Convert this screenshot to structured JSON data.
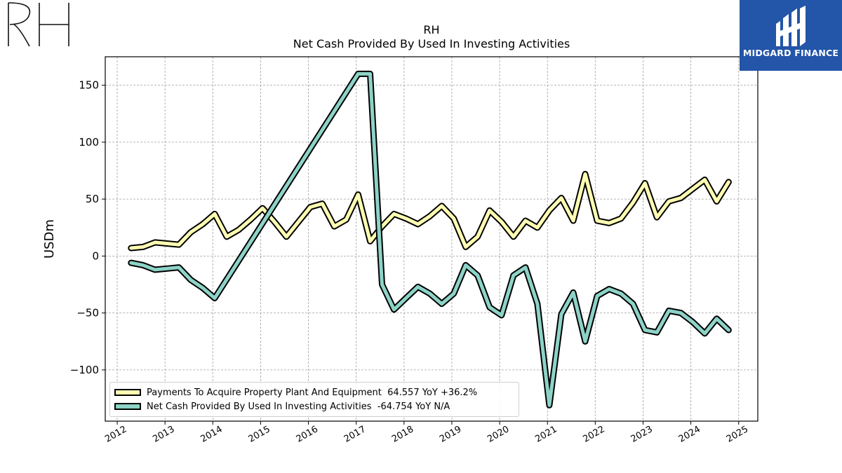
{
  "brand": {
    "monogram": "RH"
  },
  "partner": {
    "name": "MIDGARD FINANCE",
    "bg_color": "#2355a8"
  },
  "chart_data": {
    "type": "line",
    "title": "RH",
    "subtitle": "Net Cash Provided By Used In Investing Activities",
    "xlabel": "",
    "ylabel": "USDm",
    "xlim": [
      2011.75,
      2025.4
    ],
    "ylim": [
      -145,
      175
    ],
    "x_ticks": [
      "2012",
      "2013",
      "2014",
      "2015",
      "2016",
      "2017",
      "2018",
      "2019",
      "2020",
      "2021",
      "2022",
      "2023",
      "2024",
      "2025"
    ],
    "y_ticks": [
      -100,
      -50,
      0,
      50,
      100,
      150
    ],
    "y_tick_labels": [
      "−100",
      "−50",
      "0",
      "50",
      "100",
      "150"
    ],
    "grid": true,
    "legend_position": "lower-left",
    "series": [
      {
        "name": "Payments To Acquire Property Plant And Equipment",
        "legend_label": "Payments To Acquire Property Plant And Equipment  64.557 YoY +36.2%",
        "color": "#ffffb3",
        "points": [
          [
            2012.29,
            7
          ],
          [
            2012.54,
            8
          ],
          [
            2012.79,
            12
          ],
          [
            2013.04,
            11
          ],
          [
            2013.29,
            10
          ],
          [
            2013.54,
            21
          ],
          [
            2013.79,
            28
          ],
          [
            2014.04,
            37
          ],
          [
            2014.29,
            17
          ],
          [
            2014.54,
            23
          ],
          [
            2014.79,
            32
          ],
          [
            2015.04,
            42
          ],
          [
            2015.29,
            30
          ],
          [
            2015.54,
            17
          ],
          [
            2015.79,
            30
          ],
          [
            2016.04,
            43
          ],
          [
            2016.29,
            46
          ],
          [
            2016.54,
            26
          ],
          [
            2016.79,
            32
          ],
          [
            2017.04,
            54
          ],
          [
            2017.29,
            13
          ],
          [
            2017.54,
            26
          ],
          [
            2017.79,
            37
          ],
          [
            2018.04,
            33
          ],
          [
            2018.29,
            28
          ],
          [
            2018.54,
            35
          ],
          [
            2018.79,
            44
          ],
          [
            2019.04,
            33
          ],
          [
            2019.29,
            8
          ],
          [
            2019.54,
            17
          ],
          [
            2019.79,
            40
          ],
          [
            2020.04,
            30
          ],
          [
            2020.29,
            17
          ],
          [
            2020.54,
            31
          ],
          [
            2020.79,
            25
          ],
          [
            2021.04,
            40
          ],
          [
            2021.29,
            51
          ],
          [
            2021.54,
            31
          ],
          [
            2021.79,
            72
          ],
          [
            2022.04,
            31
          ],
          [
            2022.29,
            29
          ],
          [
            2022.54,
            33
          ],
          [
            2022.79,
            47
          ],
          [
            2023.04,
            64
          ],
          [
            2023.29,
            34
          ],
          [
            2023.54,
            48
          ],
          [
            2023.79,
            51
          ],
          [
            2024.04,
            59
          ],
          [
            2024.29,
            67
          ],
          [
            2024.54,
            48
          ],
          [
            2024.79,
            65
          ]
        ]
      },
      {
        "name": "Net Cash Provided By Used In Investing Activities",
        "legend_label": "Net Cash Provided By Used In Investing Activities  -64.754 YoY N/A",
        "color": "#8dd3c7",
        "points": [
          [
            2012.29,
            -6
          ],
          [
            2012.54,
            -8
          ],
          [
            2012.79,
            -12
          ],
          [
            2013.04,
            -11
          ],
          [
            2013.29,
            -10
          ],
          [
            2013.54,
            -21
          ],
          [
            2013.79,
            -28
          ],
          [
            2014.04,
            -37
          ],
          [
            2017.04,
            160
          ],
          [
            2017.29,
            160
          ],
          [
            2017.54,
            -25
          ],
          [
            2017.79,
            -47
          ],
          [
            2018.04,
            -37
          ],
          [
            2018.29,
            -27
          ],
          [
            2018.54,
            -33
          ],
          [
            2018.79,
            -42
          ],
          [
            2019.04,
            -33
          ],
          [
            2019.29,
            -8
          ],
          [
            2019.54,
            -17
          ],
          [
            2019.79,
            -45
          ],
          [
            2020.04,
            -52
          ],
          [
            2020.29,
            -17
          ],
          [
            2020.54,
            -10
          ],
          [
            2020.79,
            -42
          ],
          [
            2021.04,
            -131
          ],
          [
            2021.29,
            -51
          ],
          [
            2021.54,
            -32
          ],
          [
            2021.79,
            -75
          ],
          [
            2022.04,
            -35
          ],
          [
            2022.29,
            -29
          ],
          [
            2022.54,
            -33
          ],
          [
            2022.79,
            -42
          ],
          [
            2023.04,
            -65
          ],
          [
            2023.29,
            -67
          ],
          [
            2023.54,
            -48
          ],
          [
            2023.79,
            -50
          ],
          [
            2024.04,
            -58
          ],
          [
            2024.29,
            -68
          ],
          [
            2024.54,
            -55
          ],
          [
            2024.79,
            -65
          ]
        ]
      }
    ]
  }
}
